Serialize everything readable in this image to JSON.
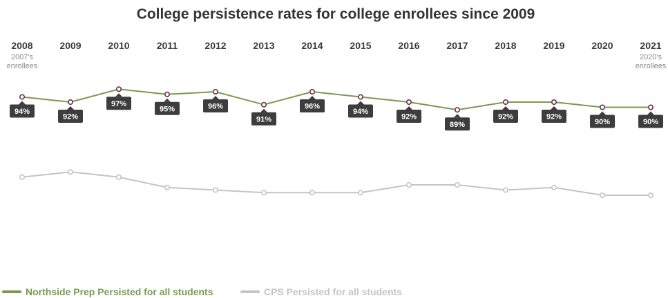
{
  "chart_data": {
    "type": "line",
    "title": "College persistence rates for college enrollees since 2009",
    "categories": [
      "2008",
      "2009",
      "2010",
      "2011",
      "2012",
      "2013",
      "2014",
      "2015",
      "2016",
      "2017",
      "2018",
      "2019",
      "2020",
      "2021"
    ],
    "notes": {
      "first": [
        "2007's",
        "enrollees"
      ],
      "last": [
        "2020's",
        "enrollees"
      ]
    },
    "series": [
      {
        "name": "Northside Prep Persisted for all students",
        "color": "#7a9a4f",
        "values": [
          94,
          92,
          97,
          95,
          96,
          91,
          96,
          94,
          92,
          89,
          92,
          92,
          90,
          90
        ],
        "value_labels": [
          "94%",
          "92%",
          "97%",
          "95%",
          "96%",
          "91%",
          "96%",
          "94%",
          "92%",
          "89%",
          "92%",
          "92%",
          "90%",
          "90%"
        ]
      },
      {
        "name": "CPS Persisted for all students",
        "color": "#c4c4c4",
        "values": [
          63,
          65,
          63,
          59,
          58,
          57,
          57,
          57,
          60,
          60,
          58,
          59,
          56,
          56
        ],
        "value_labels": []
      }
    ],
    "ylim": [
      0,
      100
    ],
    "grid": false,
    "legend": "bottom-left",
    "marker_color": "#6b2d4e",
    "label_bg": "#3d3d3d"
  }
}
